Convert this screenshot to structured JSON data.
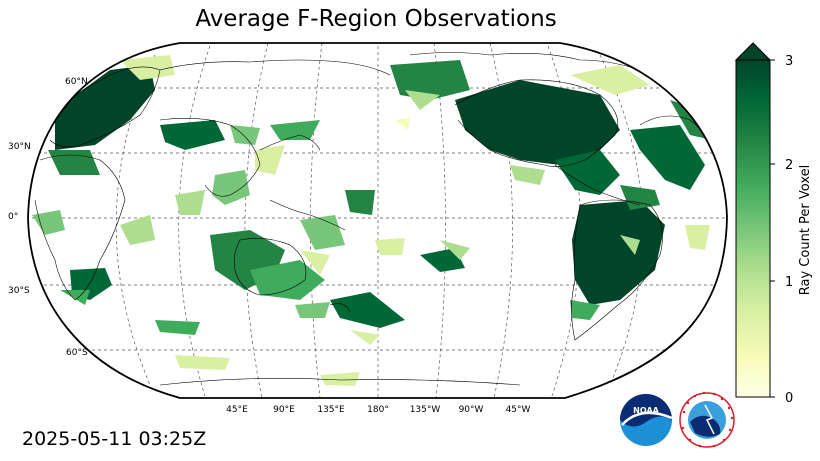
{
  "title": "Average F-Region Observations",
  "timestamp": "2025-05-11 03:25Z",
  "map": {
    "projection": "Robinson",
    "central_longitude": "180",
    "lat_labels": [
      "60°N",
      "30°N",
      "0°",
      "30°S",
      "60°S"
    ],
    "lon_labels": [
      "45°E",
      "90°E",
      "135°E",
      "180°",
      "135°W",
      "90°W",
      "45°W"
    ]
  },
  "colorbar": {
    "label": "Ray Count Per Voxel",
    "ticks": [
      "0",
      "1",
      "2",
      "3"
    ],
    "range": [
      0,
      3
    ],
    "extend": "max",
    "colormap": "YlGn",
    "colors": [
      "#ffffe5",
      "#f7fcb9",
      "#d9f0a3",
      "#addd8e",
      "#78c679",
      "#41ab5d",
      "#238443",
      "#006837",
      "#004529"
    ]
  },
  "logos": [
    {
      "name": "NOAA",
      "text": "NOAA"
    },
    {
      "name": "National Weather Service",
      "text": "NATIONAL WEATHER SERVICE"
    }
  ]
}
